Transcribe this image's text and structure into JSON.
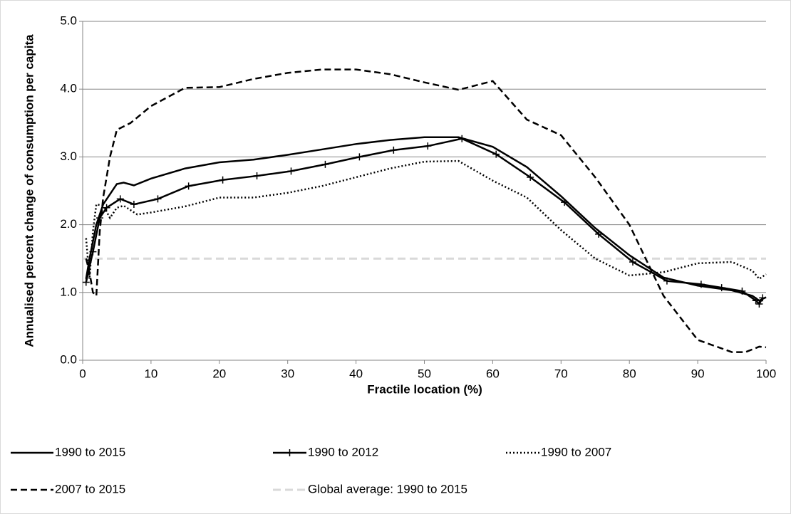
{
  "chart_data": {
    "type": "line",
    "x_label": "Fractile location (%)",
    "y_label": "Annualised percent change of  consumption per capita",
    "xlim": [
      0,
      100
    ],
    "xticks": [
      0,
      10,
      20,
      30,
      40,
      50,
      60,
      70,
      80,
      90,
      100
    ],
    "ylim": [
      0,
      5
    ],
    "yticks": [
      {
        "value": 0,
        "label": "0.0"
      },
      {
        "value": 1,
        "label": "1.0"
      },
      {
        "value": 2,
        "label": "2.0"
      },
      {
        "value": 3,
        "label": "3.0"
      },
      {
        "value": 4,
        "label": "4.0"
      },
      {
        "value": 5,
        "label": "5.0"
      }
    ],
    "grid": true,
    "legend": "bottom",
    "series": [
      {
        "name": "1990 to 2015",
        "color": "#000000",
        "dash": "solid",
        "x": [
          0.5,
          1,
          2,
          3,
          5,
          6,
          7.5,
          10,
          15,
          20,
          25,
          30,
          35,
          40,
          45,
          50,
          55,
          60,
          65,
          70,
          75,
          80,
          85,
          90,
          95,
          98,
          99,
          100
        ],
        "values": [
          1.2,
          1.5,
          2.0,
          2.3,
          2.6,
          2.62,
          2.58,
          2.68,
          2.83,
          2.92,
          2.96,
          3.03,
          3.11,
          3.19,
          3.25,
          3.29,
          3.29,
          3.15,
          2.85,
          2.42,
          1.95,
          1.55,
          1.22,
          1.1,
          1.03,
          0.95,
          0.88,
          0.93
        ]
      },
      {
        "name": "1990 to 2012",
        "color": "#000000",
        "dash": "solid",
        "marker": "plus",
        "x": [
          0.5,
          1.5,
          2.5,
          3.5,
          5.5,
          7.5,
          11,
          15.5,
          20.5,
          25.5,
          30.5,
          35.5,
          40.5,
          45.5,
          50.5,
          55.5,
          60.5,
          65.5,
          70.5,
          75.5,
          80.5,
          85.5,
          90.5,
          93.5,
          96.5,
          98.5,
          99,
          99.5
        ],
        "values": [
          1.15,
          1.6,
          2.1,
          2.25,
          2.38,
          2.3,
          2.38,
          2.57,
          2.66,
          2.72,
          2.79,
          2.89,
          3.0,
          3.1,
          3.16,
          3.27,
          3.04,
          2.7,
          2.33,
          1.86,
          1.45,
          1.17,
          1.12,
          1.07,
          1.02,
          0.88,
          0.83,
          0.92
        ]
      },
      {
        "name": "1990 to 2007",
        "color": "#000000",
        "dash": "dotted",
        "x": [
          0.5,
          1,
          1.5,
          2,
          3,
          4,
          5,
          6,
          8,
          10,
          15,
          20,
          25,
          30,
          35,
          40,
          45,
          50,
          55,
          60,
          65,
          70,
          75,
          80,
          85,
          90,
          95,
          98,
          99,
          100
        ],
        "values": [
          1.8,
          1.2,
          1.9,
          2.3,
          2.28,
          2.1,
          2.25,
          2.28,
          2.15,
          2.18,
          2.27,
          2.4,
          2.4,
          2.47,
          2.57,
          2.7,
          2.83,
          2.93,
          2.94,
          2.65,
          2.4,
          1.92,
          1.5,
          1.25,
          1.3,
          1.43,
          1.45,
          1.32,
          1.2,
          1.27
        ]
      },
      {
        "name": "2007 to 2015",
        "color": "#000000",
        "dash": "dashed",
        "x": [
          0.5,
          1,
          1.5,
          2,
          2.5,
          3,
          4,
          5,
          7,
          10,
          15,
          20,
          25,
          30,
          35,
          40,
          45,
          50,
          55,
          60,
          65,
          70,
          75,
          80,
          85,
          90,
          95,
          97,
          99,
          100
        ],
        "values": [
          1.5,
          1.3,
          1.0,
          0.95,
          1.9,
          2.4,
          3.0,
          3.4,
          3.5,
          3.75,
          4.02,
          4.03,
          4.15,
          4.24,
          4.29,
          4.29,
          4.22,
          4.1,
          3.99,
          4.12,
          3.55,
          3.32,
          2.7,
          2.0,
          0.95,
          0.3,
          0.12,
          0.12,
          0.2,
          0.19
        ]
      },
      {
        "name": "Global average: 1990 to 2015",
        "color": "#d9d9d9",
        "dash": "dashed",
        "x": [
          0,
          100
        ],
        "values": [
          1.5,
          1.5
        ]
      }
    ]
  }
}
